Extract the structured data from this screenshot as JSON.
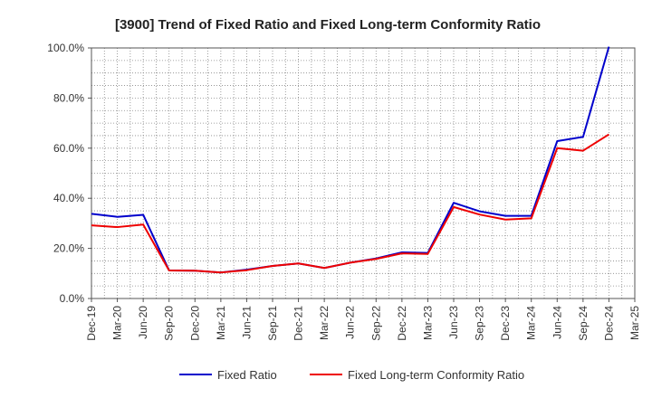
{
  "chart_data": {
    "type": "line",
    "title": "[3900]  Trend of Fixed Ratio and Fixed Long-term Conformity Ratio",
    "xlabel": "",
    "ylabel": "",
    "categories": [
      "Dec-19",
      "Mar-20",
      "Jun-20",
      "Sep-20",
      "Dec-20",
      "Mar-21",
      "Jun-21",
      "Sep-21",
      "Dec-21",
      "Mar-22",
      "Jun-22",
      "Sep-22",
      "Dec-22",
      "Mar-23",
      "Jun-23",
      "Sep-23",
      "Dec-23",
      "Mar-24",
      "Jun-24",
      "Sep-24",
      "Dec-24",
      "Mar-25"
    ],
    "ylim": [
      0,
      100
    ],
    "yticks": [
      0,
      20,
      40,
      60,
      80,
      100
    ],
    "ytick_labels": [
      "0.0%",
      "20.0%",
      "40.0%",
      "60.0%",
      "80.0%",
      "100.0%"
    ],
    "grid": true,
    "legend_position": "bottom",
    "series": [
      {
        "name": "Fixed Ratio",
        "color": "#0000cc",
        "values": [
          33.8,
          32.6,
          33.4,
          11.2,
          11.1,
          10.4,
          11.5,
          13.0,
          14.0,
          12.2,
          14.3,
          16.0,
          18.4,
          18.2,
          38.2,
          34.8,
          33.0,
          33.0,
          62.8,
          64.5,
          100.5,
          null
        ]
      },
      {
        "name": "Fixed Long-term Conformity Ratio",
        "color": "#ee0000",
        "values": [
          29.2,
          28.5,
          29.5,
          11.2,
          11.1,
          10.4,
          11.3,
          13.0,
          14.0,
          12.2,
          14.3,
          15.8,
          18.0,
          17.8,
          36.5,
          33.5,
          31.5,
          32.0,
          60.0,
          59.0,
          65.5,
          null
        ]
      }
    ]
  }
}
